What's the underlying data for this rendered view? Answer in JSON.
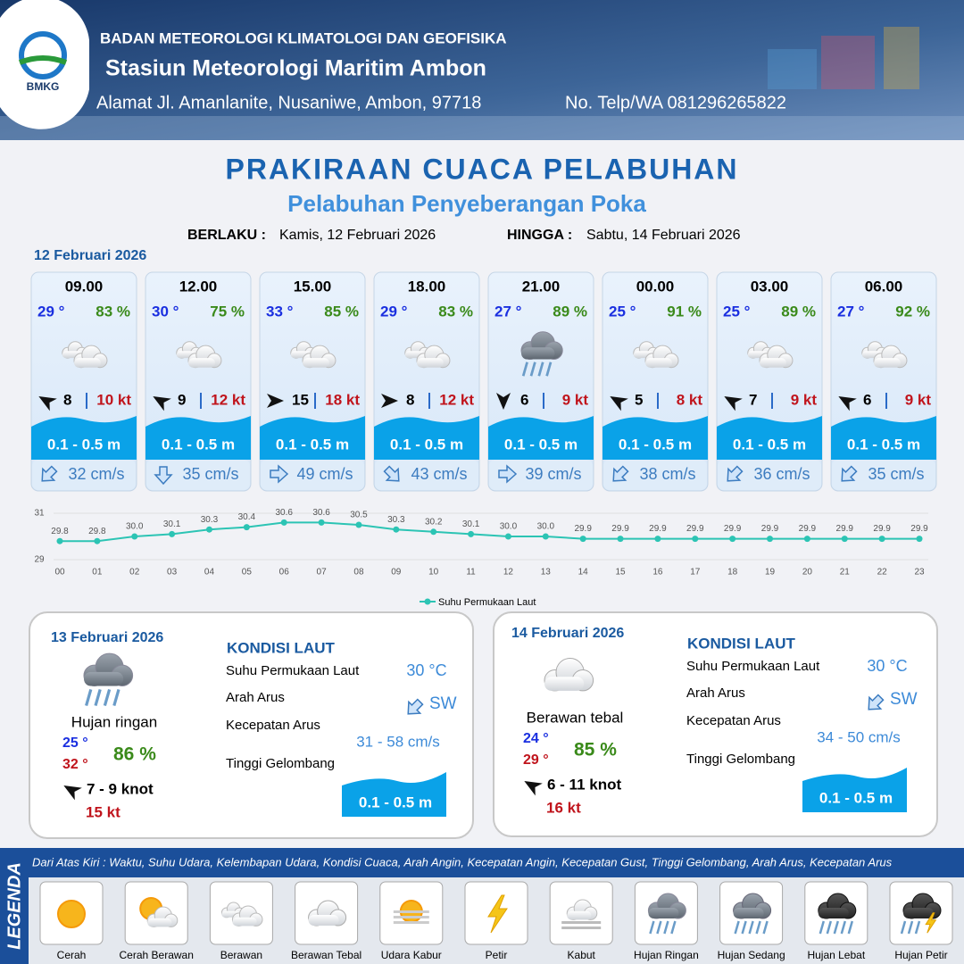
{
  "header": {
    "logo": "BMKG",
    "agency": "BADAN METEOROLOGI KLIMATOLOGI DAN GEOFISIKA",
    "station": "Stasiun Meteorologi Maritim Ambon",
    "address": "Alamat Jl. Amanlanite, Nusaniwe, Ambon, 97718",
    "phone": "No. Telp/WA  081296265822"
  },
  "title": "PRAKIRAAN CUACA PELABUHAN",
  "subtitle": "Pelabuhan Penyeberangan Poka",
  "validity": {
    "from_label": "BERLAKU :",
    "from": "Kamis, 12 Februari 2026",
    "to_label": "HINGGA :",
    "to": "Sabtu, 14 Februari 2026"
  },
  "day1": {
    "date": "12 Februari 2026",
    "cards": [
      {
        "time": "09.00",
        "temp": "29 °",
        "humidity": "83 %",
        "wind": "8",
        "gust": "10 kt",
        "wave": "0.1 - 0.5 m",
        "current": "32 cm/s"
      },
      {
        "time": "12.00",
        "temp": "30 °",
        "humidity": "75 %",
        "wind": "9",
        "gust": "12 kt",
        "wave": "0.1 - 0.5 m",
        "current": "35 cm/s"
      },
      {
        "time": "15.00",
        "temp": "33 °",
        "humidity": "85 %",
        "wind": "15",
        "gust": "18 kt",
        "wave": "0.1 - 0.5 m",
        "current": "49 cm/s"
      },
      {
        "time": "18.00",
        "temp": "29 °",
        "humidity": "83 %",
        "wind": "8",
        "gust": "12 kt",
        "wave": "0.1 - 0.5 m",
        "current": "43 cm/s"
      },
      {
        "time": "21.00",
        "temp": "27 °",
        "humidity": "89 %",
        "wind": "6",
        "gust": "9 kt",
        "wave": "0.1 - 0.5 m",
        "current": "39 cm/s"
      },
      {
        "time": "00.00",
        "temp": "25 °",
        "humidity": "91 %",
        "wind": "5",
        "gust": "8 kt",
        "wave": "0.1 - 0.5 m",
        "current": "38 cm/s"
      },
      {
        "time": "03.00",
        "temp": "25 °",
        "humidity": "89 %",
        "wind": "7",
        "gust": "9 kt",
        "wave": "0.1 - 0.5 m",
        "current": "36 cm/s"
      },
      {
        "time": "06.00",
        "temp": "27 °",
        "humidity": "92 %",
        "wind": "6",
        "gust": "9 kt",
        "wave": "0.1 - 0.5 m",
        "current": "35 cm/s"
      }
    ]
  },
  "sst_chart": {
    "type": "line",
    "categories": [
      "00",
      "01",
      "02",
      "03",
      "04",
      "05",
      "06",
      "07",
      "08",
      "09",
      "10",
      "11",
      "12",
      "13",
      "14",
      "15",
      "16",
      "17",
      "18",
      "19",
      "20",
      "21",
      "22",
      "23"
    ],
    "series": [
      {
        "name": "Suhu Permukaan Laut",
        "color": "#2cc4b4",
        "values": [
          29.8,
          29.8,
          30.0,
          30.1,
          30.3,
          30.4,
          30.6,
          30.6,
          30.5,
          30.3,
          30.2,
          30.1,
          30.0,
          30.0,
          29.9,
          29.9,
          29.9,
          29.9,
          29.9,
          29.9,
          29.9,
          29.9,
          29.9,
          29.9
        ],
        "value_labels": [
          "29.8",
          "29.8",
          "30.0",
          "30.1",
          "30.3",
          "30.4",
          "30.6",
          "30.6",
          "30.5",
          "30.3",
          "30.2",
          "30.1",
          "30.0",
          "30.0",
          "29.9",
          "29.9",
          "29.9",
          "29.9",
          "29.9",
          "29.9",
          "29.9",
          "29.9",
          "29.9",
          "29.9"
        ]
      }
    ],
    "ylim": [
      29,
      31
    ],
    "yticks": [
      29,
      31
    ],
    "grid": true
  },
  "days": [
    {
      "date": "13 Februari 2026",
      "condition": "Hujan ringan",
      "temp_min": "25 °",
      "temp_max": "32 °",
      "humidity": "86 %",
      "wind": "7  - 9 knot",
      "gust": "15 kt",
      "sea_title": "KONDISI LAUT",
      "sea_labels": [
        "Suhu Permukaan Laut",
        "Arah Arus",
        "Kecepatan Arus",
        "Tinggi Gelombang"
      ],
      "sst": "30 °C",
      "current_dir": "SW",
      "current_speed": "31 - 58 cm/s",
      "wave": "0.1 - 0.5 m"
    },
    {
      "date": "14 Februari 2026",
      "condition": "Berawan tebal",
      "temp_min": "24 °",
      "temp_max": "29 °",
      "humidity": "85 %",
      "wind": "6 - 11 knot",
      "gust": "16 kt",
      "sea_title": "KONDISI LAUT",
      "sea_labels": [
        "Suhu Permukaan Laut",
        "Arah Arus",
        "Kecepatan Arus",
        "Tinggi Gelombang"
      ],
      "sst": "30 °C",
      "current_dir": "SW",
      "current_speed": "34 - 50 cm/s",
      "wave": "0.1 - 0.5 m"
    }
  ],
  "legend": {
    "title": "LEGENDA",
    "description": "Dari Atas Kiri : Waktu, Suhu Udara, Kelembapan Udara, Kondisi Cuaca, Arah Angin, Kecepatan Angin, Kecepatan Gust, Tinggi Gelombang, Arah Arus, Kecepatan Arus",
    "items": [
      "Cerah",
      "Cerah Berawan",
      "Berawan",
      "Berawan Tebal",
      "Udara Kabur",
      "Petir",
      "Kabut",
      "Hujan Ringan",
      "Hujan Sedang",
      "Hujan Lebat",
      "Hujan Petir"
    ]
  }
}
